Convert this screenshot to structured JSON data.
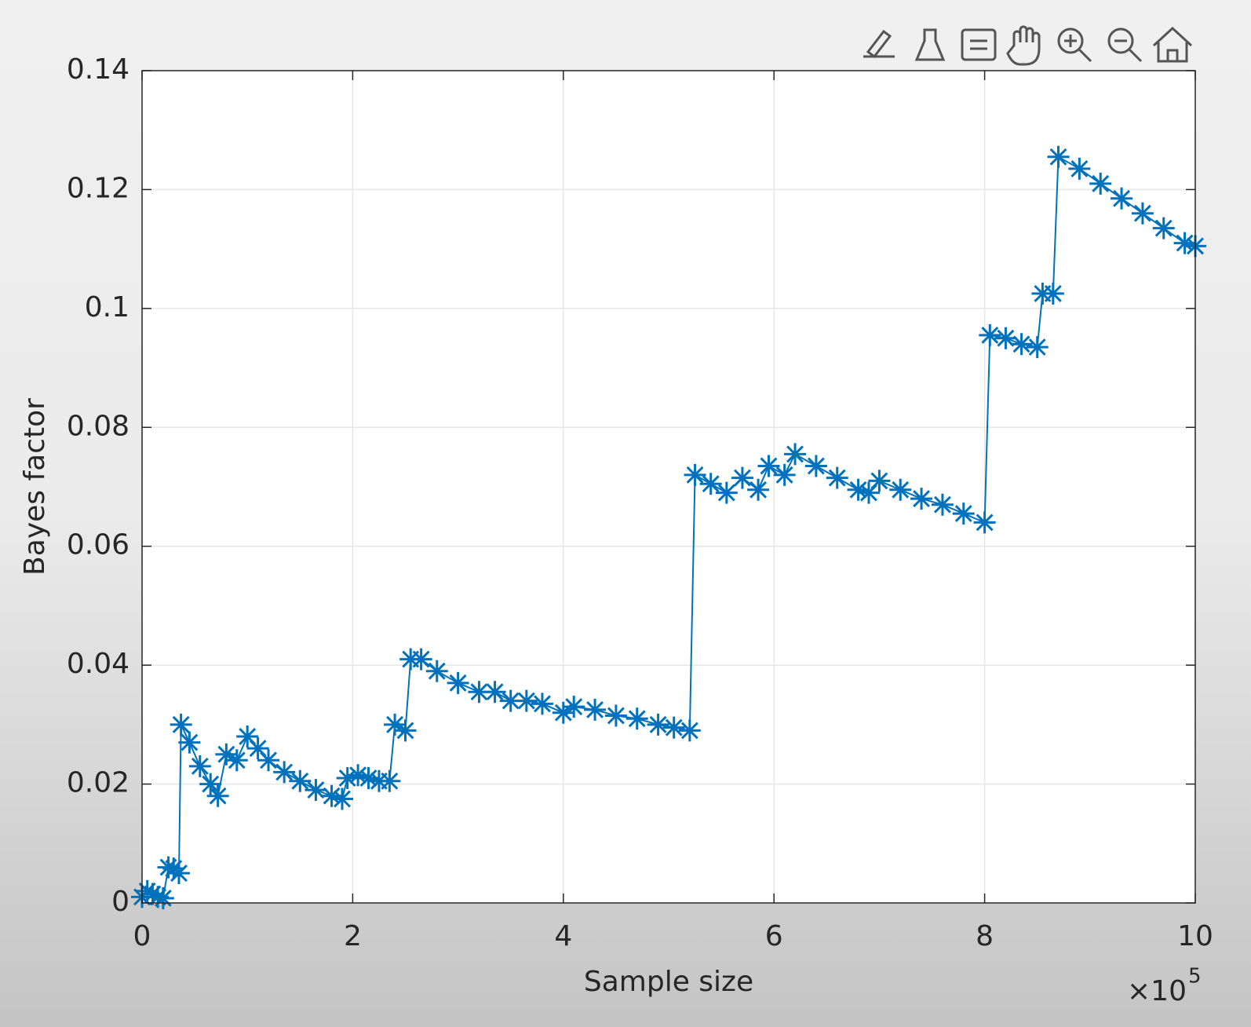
{
  "chart_data": {
    "type": "line",
    "x_label": "Sample size",
    "y_label": "Bayes factor",
    "x_exponent_base": "×10",
    "x_exponent": "5",
    "x": [
      0,
      0.05,
      0.1,
      0.15,
      0.2,
      0.25,
      0.3,
      0.35,
      0.37,
      0.45,
      0.55,
      0.65,
      0.72,
      0.8,
      0.9,
      1.0,
      1.1,
      1.2,
      1.35,
      1.5,
      1.65,
      1.8,
      1.9,
      1.95,
      2.05,
      2.15,
      2.25,
      2.35,
      2.4,
      2.5,
      2.55,
      2.65,
      2.8,
      3.0,
      3.2,
      3.35,
      3.5,
      3.65,
      3.8,
      4.0,
      4.1,
      4.3,
      4.5,
      4.7,
      4.9,
      5.05,
      5.2,
      5.25,
      5.4,
      5.55,
      5.7,
      5.85,
      5.95,
      6.1,
      6.2,
      6.4,
      6.6,
      6.8,
      6.9,
      7.0,
      7.2,
      7.4,
      7.6,
      7.8,
      8.0,
      8.05,
      8.2,
      8.35,
      8.5,
      8.55,
      8.65,
      8.7,
      8.9,
      9.1,
      9.3,
      9.5,
      9.7,
      9.9,
      10
    ],
    "series": [
      {
        "color": "#0072bd",
        "marker": "asterisk",
        "values": [
          0.001,
          0.002,
          0.0015,
          0.001,
          0.0008,
          0.006,
          0.0058,
          0.005,
          0.03,
          0.027,
          0.023,
          0.02,
          0.018,
          0.025,
          0.024,
          0.028,
          0.026,
          0.024,
          0.022,
          0.0205,
          0.019,
          0.018,
          0.0175,
          0.021,
          0.0215,
          0.021,
          0.0205,
          0.0205,
          0.03,
          0.029,
          0.041,
          0.041,
          0.039,
          0.037,
          0.0355,
          0.0355,
          0.034,
          0.034,
          0.0335,
          0.032,
          0.033,
          0.0325,
          0.0315,
          0.031,
          0.03,
          0.0295,
          0.029,
          0.072,
          0.0705,
          0.069,
          0.0715,
          0.0695,
          0.0735,
          0.072,
          0.0755,
          0.0735,
          0.0715,
          0.0695,
          0.069,
          0.071,
          0.0695,
          0.068,
          0.067,
          0.0655,
          0.064,
          0.0955,
          0.095,
          0.094,
          0.0935,
          0.1025,
          0.1025,
          0.1255,
          0.1235,
          0.121,
          0.1185,
          0.116,
          0.1135,
          0.111,
          0.1105
        ]
      }
    ],
    "xlim": [
      0,
      10
    ],
    "xticks": [
      0,
      2,
      4,
      6,
      8,
      10
    ],
    "ylim": [
      0,
      0.14
    ],
    "yticks": [
      0,
      0.02,
      0.04,
      0.06,
      0.08,
      0.1,
      0.12,
      0.14
    ],
    "grid": true
  }
}
